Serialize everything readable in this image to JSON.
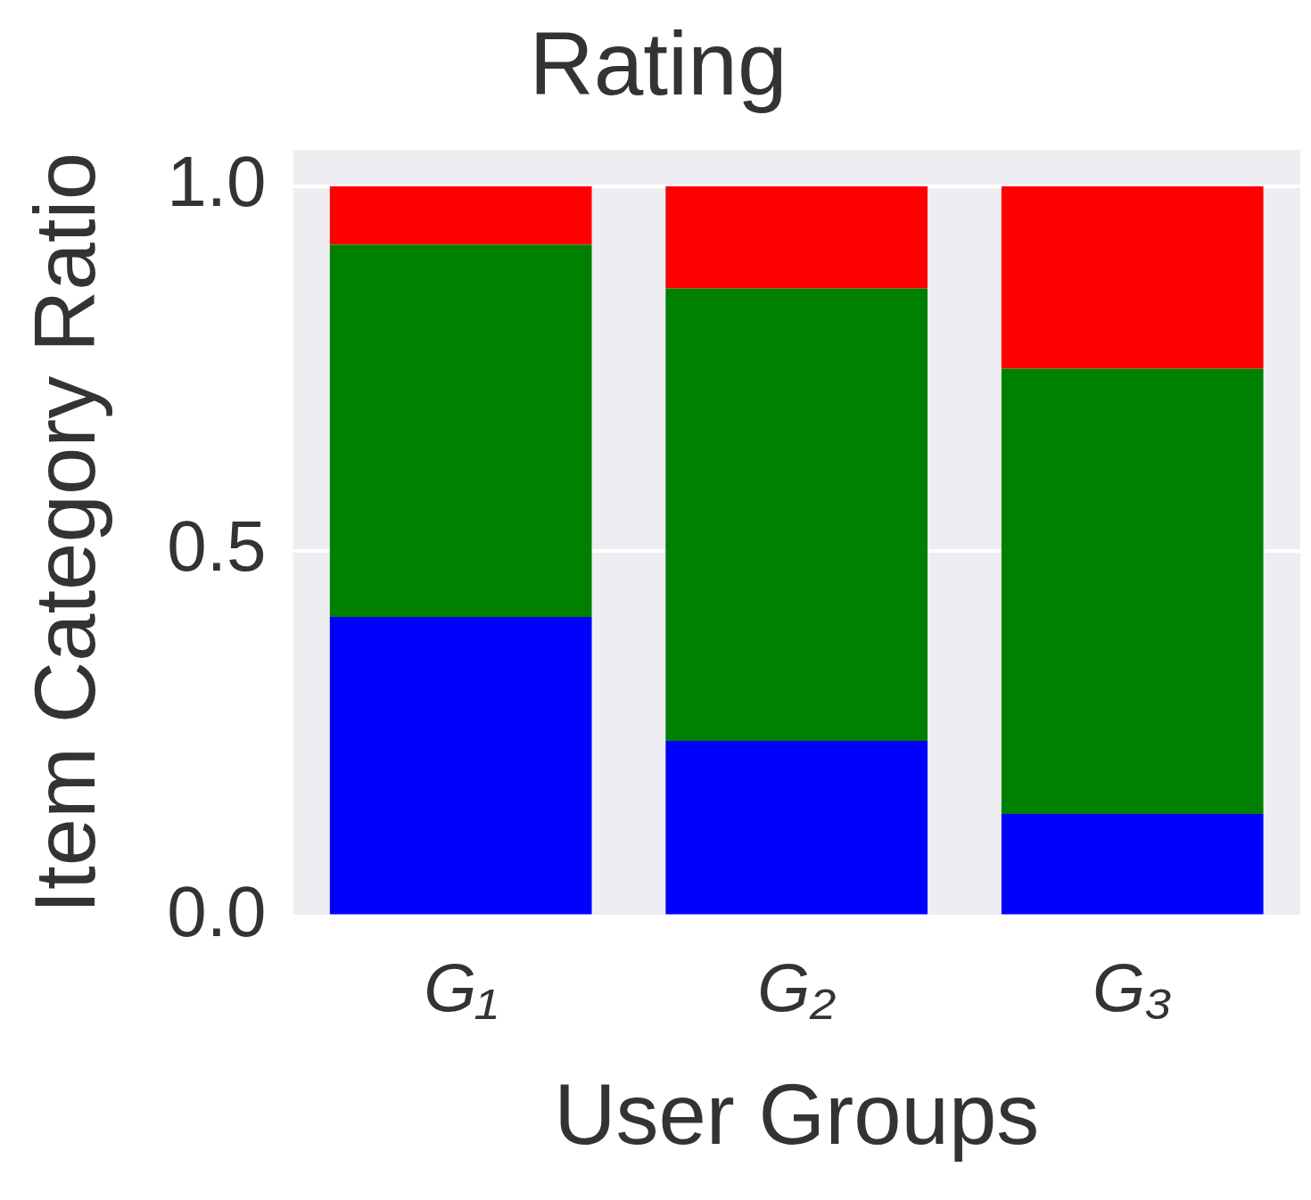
{
  "chart_data": {
    "type": "bar",
    "title": "Rating",
    "xlabel": "User Groups",
    "ylabel": "Item Category Ratio",
    "categories": [
      "G₁",
      "G₂",
      "G₃"
    ],
    "stacked": true,
    "series": [
      {
        "color": "#0000ff",
        "values": [
          0.41,
          0.24,
          0.14
        ]
      },
      {
        "color": "#008000",
        "values": [
          0.51,
          0.62,
          0.61
        ]
      },
      {
        "color": "#ff0000",
        "values": [
          0.08,
          0.14,
          0.25
        ]
      }
    ],
    "ylim": [
      0,
      1.05
    ],
    "yticks": [
      {
        "value": 0,
        "label": "0.0"
      },
      {
        "value": 0.5,
        "label": "0.5"
      },
      {
        "value": 1,
        "label": "1.0"
      }
    ],
    "grid": "y",
    "legend": false
  }
}
